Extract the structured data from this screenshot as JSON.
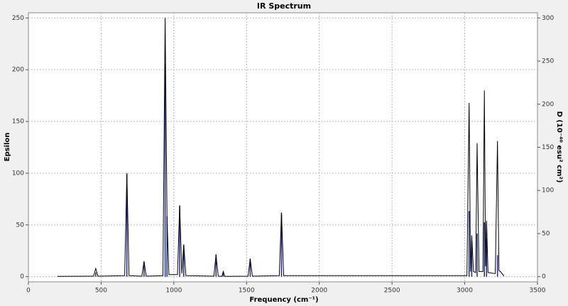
{
  "chart_data": {
    "type": "line",
    "title": "IR Spectrum",
    "x_label": "Frequency (cm⁻¹)",
    "y_label": "Epsilon",
    "y2_label": "D (10⁻⁴⁰ esu² cm²)",
    "xlim": [
      0,
      3500
    ],
    "xticks": [
      0,
      500,
      1000,
      1500,
      2000,
      2500,
      3000,
      3500
    ],
    "ylim": [
      -5,
      255
    ],
    "yticks": [
      0,
      50,
      100,
      150,
      200,
      250
    ],
    "y2lim": [
      -6,
      306
    ],
    "y2ticks": [
      0,
      50,
      100,
      150,
      200,
      250,
      300
    ],
    "grid": true,
    "series": [
      {
        "name": "Epsilon",
        "type": "line",
        "color": "#000000",
        "x": [
          200,
          448,
          463,
          478,
          662,
          677,
          692,
          780,
          795,
          810,
          925,
          940,
          953,
          966,
          1025,
          1040,
          1055,
          1068,
          1083,
          1275,
          1290,
          1305,
          1330,
          1340,
          1350,
          1510,
          1525,
          1540,
          1725,
          1740,
          1755,
          3015,
          3030,
          3040,
          3048,
          3060,
          3075,
          3085,
          3098,
          3125,
          3135,
          3143,
          3150,
          3160,
          3210,
          3225,
          3235,
          3245,
          3270
        ],
        "values": [
          0.3,
          0.5,
          8,
          0.5,
          1,
          100,
          1,
          0.5,
          15,
          0.5,
          1,
          250,
          57,
          2,
          2,
          69,
          3,
          31,
          1,
          0.5,
          21,
          0.5,
          0.3,
          5,
          0.3,
          0.5,
          17,
          0.5,
          1,
          62,
          1,
          1,
          168,
          5,
          40,
          5,
          4,
          129,
          5,
          5,
          180,
          10,
          54,
          4,
          3,
          131,
          6,
          5,
          0.5
        ]
      },
      {
        "name": "D",
        "type": "stick",
        "axis": "y2",
        "color": "#1f2a80",
        "x": [
          463,
          677,
          795,
          940,
          953,
          1040,
          1068,
          1290,
          1340,
          1525,
          1740,
          3030,
          3048,
          3085,
          3135,
          3150,
          3225
        ],
        "values": [
          5,
          119,
          14,
          247,
          70,
          82,
          37,
          26,
          6,
          21,
          74,
          76,
          40,
          50,
          63,
          45,
          25
        ]
      }
    ]
  }
}
